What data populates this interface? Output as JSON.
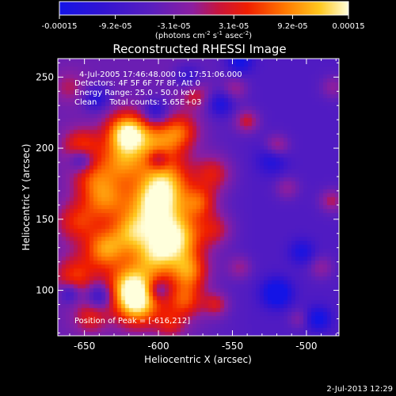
{
  "colorbar": {
    "tick_labels": [
      "-0.00015",
      "-9.2e-05",
      "-3.1e-05",
      "3.1e-05",
      "9.2e-05",
      "0.00015"
    ],
    "range": [
      -0.00015,
      0.00015
    ],
    "unit_parts": [
      "(photons cm",
      "-2",
      " s",
      "-1",
      " asec",
      "-2",
      ")"
    ],
    "stops": [
      {
        "v": 0.0,
        "c": "#1414e6"
      },
      {
        "v": 0.15,
        "c": "#3214d2"
      },
      {
        "v": 0.32,
        "c": "#5a1ebe"
      },
      {
        "v": 0.46,
        "c": "#8c1ea0"
      },
      {
        "v": 0.55,
        "c": "#c8143c"
      },
      {
        "v": 0.65,
        "c": "#f01e00"
      },
      {
        "v": 0.78,
        "c": "#ff7800"
      },
      {
        "v": 0.9,
        "c": "#ffc81e"
      },
      {
        "v": 1.0,
        "c": "#ffffdc"
      }
    ]
  },
  "chart_data": {
    "type": "heatmap",
    "title": "Reconstructed RHESSI Image",
    "xlabel": "Heliocentric X (arcsec)",
    "ylabel": "Heliocentric Y (arcsec)",
    "xlim": [
      -668,
      -478
    ],
    "ylim": [
      68,
      263
    ],
    "xticks": [
      -650,
      -600,
      -550,
      -500
    ],
    "yticks": [
      100,
      150,
      200,
      250
    ],
    "annotations": [
      "4-Jul-2005 17:46:48.000 to 17:51:06.000",
      "Detectors: 4F 5F 6F 7F 8F, Att 0",
      "Energy Range: 25.0 - 50.0 keV",
      "Clean     Total counts: 5.65E+03"
    ],
    "peak_label": "Position of Peak = [-616,212]",
    "peak": [
      -616,
      212
    ],
    "sources": [
      {
        "x": -621,
        "y": 211,
        "r": 10,
        "a": 1.0
      },
      {
        "x": -585,
        "y": 212,
        "r": 9,
        "a": 0.5
      },
      {
        "x": -652,
        "y": 201,
        "r": 9,
        "a": 0.55
      },
      {
        "x": -600,
        "y": 203,
        "r": 11,
        "a": 0.55
      },
      {
        "x": -624,
        "y": 190,
        "r": 11,
        "a": 0.6
      },
      {
        "x": -645,
        "y": 180,
        "r": 10,
        "a": 0.4
      },
      {
        "x": -595,
        "y": 177,
        "r": 12,
        "a": 0.65
      },
      {
        "x": -563,
        "y": 182,
        "r": 9,
        "a": 0.45
      },
      {
        "x": -636,
        "y": 164,
        "r": 11,
        "a": 0.6
      },
      {
        "x": -603,
        "y": 160,
        "r": 13,
        "a": 0.85
      },
      {
        "x": -572,
        "y": 162,
        "r": 8,
        "a": 0.5
      },
      {
        "x": -655,
        "y": 148,
        "r": 10,
        "a": 0.45
      },
      {
        "x": -618,
        "y": 141,
        "r": 10,
        "a": 0.6
      },
      {
        "x": -588,
        "y": 137,
        "r": 13,
        "a": 0.9
      },
      {
        "x": -561,
        "y": 143,
        "r": 8,
        "a": 0.35
      },
      {
        "x": -636,
        "y": 129,
        "r": 10,
        "a": 0.7
      },
      {
        "x": -603,
        "y": 123,
        "r": 11,
        "a": 0.6
      },
      {
        "x": -656,
        "y": 110,
        "r": 10,
        "a": 0.5
      },
      {
        "x": -619,
        "y": 104,
        "r": 11,
        "a": 0.75
      },
      {
        "x": -579,
        "y": 113,
        "r": 9,
        "a": 0.6
      },
      {
        "x": -614,
        "y": 90,
        "r": 11,
        "a": 0.85
      },
      {
        "x": -582,
        "y": 93,
        "r": 9,
        "a": 0.55
      },
      {
        "x": -646,
        "y": 81,
        "r": 8,
        "a": 0.4
      },
      {
        "x": -592,
        "y": 76,
        "r": 7,
        "a": 0.35
      },
      {
        "x": -660,
        "y": 243,
        "r": 8,
        "a": 0.25
      },
      {
        "x": -575,
        "y": 237,
        "r": 7,
        "a": 0.35
      },
      {
        "x": -540,
        "y": 219,
        "r": 6,
        "a": 0.45
      },
      {
        "x": -520,
        "y": 201,
        "r": 6,
        "a": 0.45
      },
      {
        "x": -513,
        "y": 172,
        "r": 6,
        "a": 0.3
      },
      {
        "x": -483,
        "y": 163,
        "r": 6,
        "a": 0.4
      },
      {
        "x": -545,
        "y": 116,
        "r": 6,
        "a": 0.3
      },
      {
        "x": -490,
        "y": 116,
        "r": 6,
        "a": 0.3
      },
      {
        "x": -505,
        "y": 80,
        "r": 5,
        "a": 0.25
      },
      {
        "x": -561,
        "y": 90,
        "r": 6,
        "a": 0.4
      },
      {
        "x": -548,
        "y": 242,
        "r": 6,
        "a": 0.3
      },
      {
        "x": -482,
        "y": 243,
        "r": 6,
        "a": 0.3
      },
      {
        "x": -545,
        "y": 261,
        "r": 6,
        "a": -0.5
      },
      {
        "x": -558,
        "y": 231,
        "r": 6,
        "a": -0.45
      },
      {
        "x": -523,
        "y": 192,
        "r": 7,
        "a": -0.4
      },
      {
        "x": -503,
        "y": 127,
        "r": 6,
        "a": -0.4
      },
      {
        "x": -520,
        "y": 98,
        "r": 7,
        "a": -0.7
      },
      {
        "x": -492,
        "y": 80,
        "r": 6,
        "a": -0.5
      },
      {
        "x": -642,
        "y": 235,
        "r": 6,
        "a": -0.45
      },
      {
        "x": -652,
        "y": 192,
        "r": 6,
        "a": -0.55
      },
      {
        "x": -602,
        "y": 226,
        "r": 6,
        "a": -0.45
      },
      {
        "x": -640,
        "y": 96,
        "r": 6,
        "a": -0.45
      },
      {
        "x": -600,
        "y": 100,
        "r": 5,
        "a": -0.35
      },
      {
        "x": -660,
        "y": 98,
        "r": 5,
        "a": -0.4
      },
      {
        "x": -580,
        "y": 250,
        "r": 6,
        "a": -0.35
      },
      {
        "x": -600,
        "y": 192,
        "r": 5,
        "a": -0.4
      }
    ],
    "baseline_left": -0.05,
    "baseline_right": -0.2
  },
  "footer": {
    "date": "2-Jul-2013 12:29"
  }
}
